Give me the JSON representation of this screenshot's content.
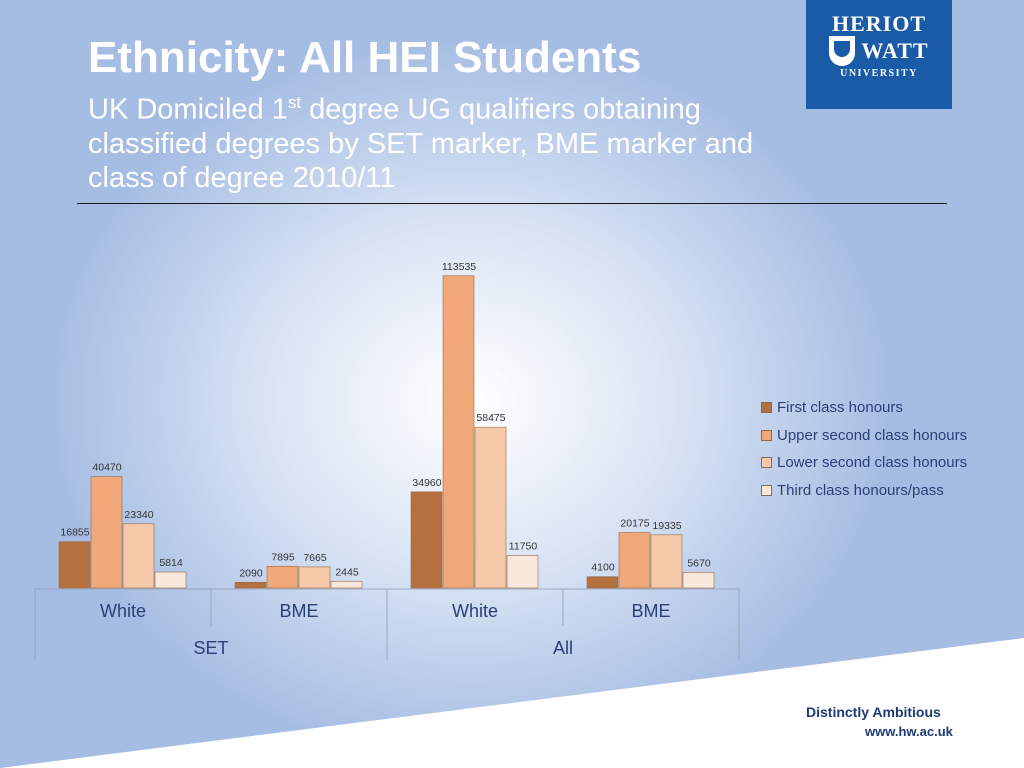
{
  "header": {
    "title": "Ethnicity: All HEI Students",
    "subtitle_pre": "UK Domiciled 1",
    "subtitle_sup": "st",
    "subtitle_post": " degree UG qualifiers obtaining classified degrees by SET marker, BME marker and class of degree 2010/11"
  },
  "logo": {
    "line1": "HERIOT",
    "line2": "WATT",
    "line3": "UNIVERSITY"
  },
  "footer": {
    "tagline": "Distinctly Ambitious",
    "url": "www.hw.ac.uk"
  },
  "colors": {
    "background": "#a6bde3",
    "text": "#2a3f78",
    "logo_blue": "#1a5ba8",
    "series": [
      "#b5703f",
      "#f0a878",
      "#f5c9a8",
      "#fbe8dc"
    ]
  },
  "chart_data": {
    "type": "bar",
    "title": "",
    "xlabel": "",
    "ylabel": "",
    "groups": [
      "SET",
      "All"
    ],
    "categories": [
      "White",
      "BME",
      "White",
      "BME"
    ],
    "category_group": [
      0,
      0,
      1,
      1
    ],
    "series": [
      {
        "name": "First class honours",
        "values": [
          16855,
          2090,
          34960,
          4100
        ]
      },
      {
        "name": "Upper second class honours",
        "values": [
          40470,
          7895,
          113535,
          20175
        ]
      },
      {
        "name": "Lower second class honours",
        "values": [
          23340,
          7665,
          58475,
          19335
        ]
      },
      {
        "name": "Third class honours/pass",
        "values": [
          5814,
          2445,
          11750,
          5670
        ]
      }
    ],
    "ylim": [
      0,
      120000
    ],
    "grid": false,
    "legend": "right"
  }
}
